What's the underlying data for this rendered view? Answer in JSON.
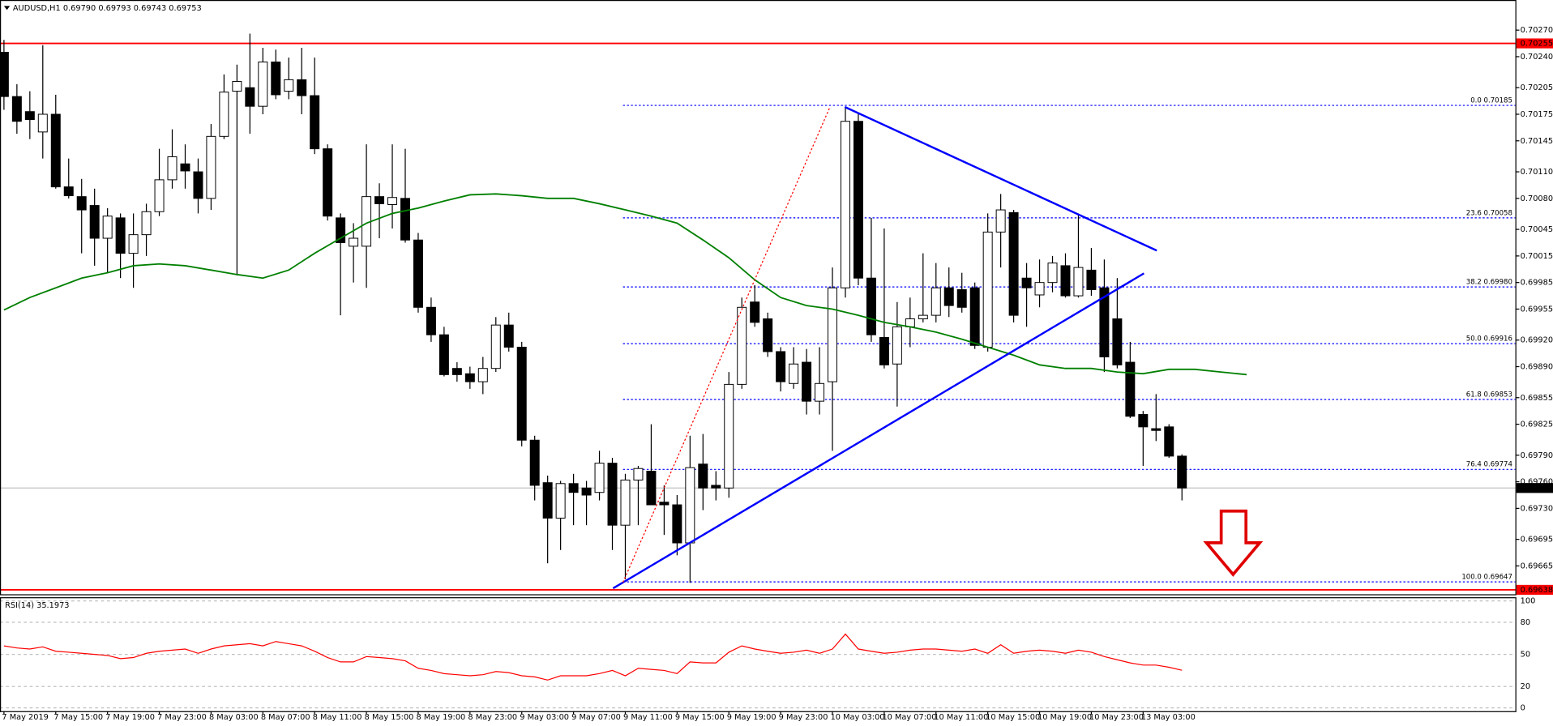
{
  "chart_data": [
    {
      "type": "candlestick",
      "title": "AUDUSD,H1  0.69790 0.69793 0.69743 0.69753",
      "categories": [
        "7 May 2019",
        null,
        null,
        null,
        "7 May 15:00",
        null,
        null,
        null,
        "7 May 19:00",
        null,
        null,
        null,
        "7 May 23:00",
        null,
        null,
        null,
        "8 May 03:00",
        null,
        null,
        null,
        "8 May 07:00",
        null,
        null,
        null,
        "8 May 11:00",
        null,
        null,
        null,
        "8 May 15:00",
        null,
        null,
        null,
        "8 May 19:00",
        null,
        null,
        null,
        "8 May 23:00",
        null,
        null,
        null,
        "9 May 03:00",
        null,
        null,
        null,
        "9 May 07:00",
        null,
        null,
        null,
        "9 May 11:00",
        null,
        null,
        null,
        "9 May 15:00",
        null,
        null,
        null,
        "9 May 19:00",
        null,
        null,
        null,
        "9 May 23:00",
        null,
        null,
        null,
        "10 May 03:00",
        null,
        null,
        null,
        "10 May 07:00",
        null,
        null,
        null,
        "10 May 11:00",
        null,
        null,
        null,
        "10 May 15:00",
        null,
        null,
        null,
        "10 May 19:00",
        null,
        null,
        null,
        "10 May 23:00",
        null,
        null,
        null,
        "13 May 03:00",
        null,
        null,
        null
      ],
      "series": [
        {
          "up_color": "#ffffff",
          "down_color": "#000000",
          "open": [
            0.70245,
            0.70195,
            0.70178,
            0.70155,
            0.70175,
            0.70093,
            0.70082,
            0.70072,
            0.70035,
            0.70058,
            0.70018,
            0.70039,
            0.70065,
            0.70101,
            0.70119,
            0.7011,
            0.7008,
            0.7015,
            0.70201,
            0.70205,
            0.70184,
            0.70234,
            0.70201,
            0.70214,
            0.70196,
            0.70136,
            0.70058,
            0.70026,
            0.70026,
            0.70082,
            0.70073,
            0.7008,
            0.70033,
            0.69957,
            0.69926,
            0.69888,
            0.69882,
            0.69873,
            0.69888,
            0.69937,
            0.69912,
            0.69807,
            0.69759,
            0.69719,
            0.69758,
            0.69753,
            0.69748,
            0.69781,
            0.69711,
            0.69762,
            0.69772,
            0.69737,
            0.69734,
            0.69691,
            0.6978,
            0.69756,
            0.69753,
            0.6987,
            0.69963,
            0.69944,
            0.69907,
            0.69871,
            0.69895,
            0.69851,
            0.69873,
            0.69979,
            0.70167,
            0.6999,
            0.69923,
            0.69893,
            0.69935,
            0.69944,
            0.69948,
            0.69979,
            0.69977,
            0.69979,
            0.69912,
            0.70042,
            0.70064,
            0.6999,
            0.69971,
            0.69985,
            0.70004,
            0.6997,
            0.69999,
            0.69979,
            0.69944,
            0.69895,
            0.69836,
            0.6982,
            0.69822,
            0.69789
          ],
          "high": [
            0.70259,
            0.70209,
            0.70201,
            0.70253,
            0.70197,
            0.70125,
            0.70102,
            0.70091,
            0.70069,
            0.70063,
            0.70063,
            0.70074,
            0.70136,
            0.70158,
            0.70141,
            0.70125,
            0.70164,
            0.7022,
            0.70231,
            0.70266,
            0.7025,
            0.70248,
            0.70239,
            0.7025,
            0.70239,
            0.70141,
            0.70063,
            0.70052,
            0.70141,
            0.70097,
            0.70141,
            0.70136,
            0.70041,
            0.69968,
            0.69935,
            0.69895,
            0.6989,
            0.69901,
            0.69946,
            0.69951,
            0.69918,
            0.69812,
            0.69767,
            0.69761,
            0.69769,
            0.69761,
            0.69795,
            0.69787,
            0.69769,
            0.69778,
            0.69825,
            0.69756,
            0.69745,
            0.69812,
            0.69814,
            0.69772,
            0.69884,
            0.69968,
            0.69982,
            0.69951,
            0.69912,
            0.69912,
            0.6991,
            0.69912,
            0.70002,
            0.70183,
            0.70177,
            0.70058,
            0.70046,
            0.69963,
            0.69968,
            0.70018,
            0.70007,
            0.70002,
            0.69996,
            0.69985,
            0.70063,
            0.70085,
            0.70067,
            0.70007,
            0.70011,
            0.70015,
            0.70018,
            0.70063,
            0.70024,
            0.70011,
            0.6999,
            0.69918,
            0.6984,
            0.69859,
            0.69825,
            0.69791
          ],
          "low": [
            0.7018,
            0.70153,
            0.70147,
            0.70125,
            0.70091,
            0.7008,
            0.70018,
            0.70004,
            0.69996,
            0.6999,
            0.69979,
            0.70015,
            0.7006,
            0.70091,
            0.70091,
            0.70063,
            0.70067,
            0.70147,
            0.69993,
            0.70153,
            0.70175,
            0.70192,
            0.70192,
            0.70175,
            0.7013,
            0.70055,
            0.69948,
            0.69985,
            0.69979,
            0.70035,
            0.70046,
            0.7003,
            0.69951,
            0.69918,
            0.69879,
            0.69873,
            0.69865,
            0.69859,
            0.69884,
            0.69907,
            0.698,
            0.69739,
            0.69668,
            0.69683,
            0.69711,
            0.69711,
            0.69739,
            0.69683,
            0.6965,
            0.69711,
            0.69734,
            0.697,
            0.69677,
            0.69646,
            0.69728,
            0.69739,
            0.69742,
            0.69865,
            0.69935,
            0.69901,
            0.69862,
            0.69865,
            0.69836,
            0.69836,
            0.69795,
            0.69968,
            0.69982,
            0.69918,
            0.69888,
            0.69845,
            0.69912,
            0.6994,
            0.6994,
            0.69946,
            0.69951,
            0.6991,
            0.69907,
            0.70002,
            0.6994,
            0.69935,
            0.69957,
            0.69974,
            0.69968,
            0.69968,
            0.6997,
            0.69884,
            0.69888,
            0.69832,
            0.69778,
            0.69806,
            0.69787,
            0.69739
          ],
          "close": [
            0.70195,
            0.70167,
            0.70169,
            0.70175,
            0.70093,
            0.70083,
            0.70067,
            0.70035,
            0.7006,
            0.70018,
            0.70039,
            0.70065,
            0.70101,
            0.70127,
            0.70111,
            0.7008,
            0.7015,
            0.702,
            0.70212,
            0.70184,
            0.70234,
            0.70197,
            0.70214,
            0.70196,
            0.70136,
            0.7006,
            0.7003,
            0.70035,
            0.70082,
            0.70074,
            0.70081,
            0.70033,
            0.69957,
            0.69926,
            0.69881,
            0.69881,
            0.69873,
            0.69888,
            0.69937,
            0.69912,
            0.69807,
            0.69756,
            0.69719,
            0.69758,
            0.69748,
            0.69745,
            0.69781,
            0.69711,
            0.69762,
            0.69775,
            0.69734,
            0.69734,
            0.69691,
            0.69776,
            0.69753,
            0.69753,
            0.6987,
            0.69957,
            0.6994,
            0.69907,
            0.69873,
            0.69893,
            0.69851,
            0.69871,
            0.69979,
            0.70167,
            0.6999,
            0.69926,
            0.69892,
            0.69935,
            0.69944,
            0.69948,
            0.69979,
            0.69959,
            0.69957,
            0.69914,
            0.70042,
            0.70067,
            0.69948,
            0.69979,
            0.69985,
            0.70007,
            0.6997,
            0.70002,
            0.69977,
            0.69901,
            0.69892,
            0.69834,
            0.69822,
            0.69818,
            0.69789,
            0.69753
          ]
        }
      ],
      "moving_average": {
        "color": "#008000",
        "x": [
          0,
          2,
          4,
          6,
          8,
          10,
          12,
          14,
          16,
          18,
          20,
          22,
          24,
          26,
          28,
          30,
          32,
          34,
          36,
          38,
          40,
          42,
          44,
          46,
          48,
          50,
          52,
          54,
          56,
          58,
          60,
          62,
          64,
          66,
          68,
          70,
          72,
          74,
          76,
          78,
          80,
          82,
          84,
          86,
          88,
          90,
          92,
          94,
          96
        ],
        "values": [
          0.69954,
          0.69968,
          0.69979,
          0.6999,
          0.69996,
          0.70004,
          0.70006,
          0.70004,
          0.69999,
          0.69994,
          0.6999,
          0.69999,
          0.70018,
          0.70035,
          0.70052,
          0.70063,
          0.70069,
          0.70077,
          0.70084,
          0.70085,
          0.70083,
          0.7008,
          0.7008,
          0.70074,
          0.70067,
          0.7006,
          0.70052,
          0.70033,
          0.70013,
          0.69988,
          0.69968,
          0.69959,
          0.69955,
          0.69948,
          0.6994,
          0.69935,
          0.69929,
          0.69921,
          0.69912,
          0.69903,
          0.69892,
          0.69888,
          0.69888,
          0.69884,
          0.69882,
          0.69887,
          0.69887,
          0.69884,
          0.69881
        ]
      },
      "ylim": [
        0.69633,
        0.70304
      ],
      "yticks": [
        {
          "value": 0.7027,
          "label": "0.70270"
        },
        {
          "value": 0.7024,
          "label": "0.70240"
        },
        0.70205,
        0.70175,
        0.70145,
        {
          "value": 0.7011,
          "label": "0.70110"
        },
        {
          "value": 0.7008,
          "label": "0.70080"
        },
        0.70045,
        0.70015,
        0.69985,
        0.69955,
        {
          "value": 0.6992,
          "label": "0.69920"
        },
        {
          "value": 0.6989,
          "label": "0.69890"
        },
        0.69855,
        0.69825,
        {
          "value": 0.6979,
          "label": "0.69790"
        },
        {
          "value": 0.6976,
          "label": "0.69760"
        },
        {
          "value": 0.6973,
          "label": "0.69730"
        },
        0.69695,
        0.69665
      ],
      "levels": [
        {
          "value": 0.70255,
          "color": "#ff0000"
        },
        {
          "value": 0.69638,
          "color": "#ff0000"
        }
      ],
      "current_price": 0.69753,
      "fib_color": "#0000ff",
      "fib_levels": [
        {
          "value": 0.70185,
          "label": "0.0 0.70185"
        },
        {
          "value": 0.70058,
          "label": "23.6 0.70058"
        },
        {
          "value": 0.6998,
          "label": "38.2 0.69980"
        },
        {
          "value": 0.69916,
          "label": "50.0 0.69916"
        },
        {
          "value": 0.69853,
          "label": "61.8 0.69853"
        },
        {
          "value": 0.69774,
          "label": "76.4 0.69774"
        },
        {
          "value": 0.69647,
          "label": "100.0 0.69647"
        }
      ]
    },
    {
      "type": "line",
      "title": "RSI(14) 35.1973",
      "series": [
        {
          "color": "#ff0000",
          "values": [
            58,
            56,
            55,
            57,
            53,
            52,
            51,
            50,
            49,
            46,
            47,
            51,
            53,
            54,
            55,
            51,
            55,
            58,
            59,
            60,
            58,
            62,
            60,
            58,
            53,
            47,
            43,
            43,
            48,
            47,
            46,
            44,
            37,
            35,
            32,
            31,
            30,
            31,
            34,
            33,
            30,
            29,
            26,
            30,
            30,
            30,
            32,
            35,
            30,
            37,
            36,
            35,
            32,
            43,
            42,
            42,
            52,
            58,
            55,
            53,
            51,
            52,
            54,
            51,
            55,
            69,
            55,
            53,
            51,
            52,
            54,
            55,
            55,
            54,
            53,
            55,
            51,
            59,
            51,
            53,
            54,
            53,
            51,
            54,
            52,
            48,
            45,
            42,
            40,
            40,
            38,
            35.1973
          ]
        }
      ],
      "ylim": [
        0,
        100
      ],
      "yticks": [
        100,
        80,
        50,
        20,
        0
      ],
      "grid": true
    }
  ]
}
